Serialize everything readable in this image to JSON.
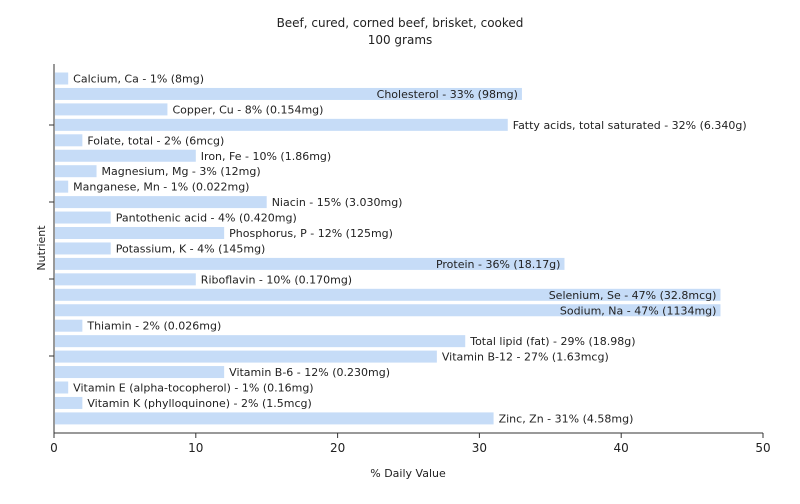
{
  "chart_data": {
    "type": "bar",
    "orientation": "horizontal",
    "title": "Beef, cured, corned beef, brisket, cooked",
    "subtitle": "100 grams",
    "xlabel": "% Daily Value",
    "ylabel": "Nutrient",
    "xlim": [
      0,
      50
    ],
    "xticks": [
      "0",
      "10",
      "20",
      "30",
      "40",
      "50"
    ],
    "grid": false,
    "legend": "none",
    "bar_color": "#c6dcf7",
    "bars": [
      {
        "category": "Calcium, Ca",
        "value": 1,
        "label": "Calcium, Ca - 1% (8mg)"
      },
      {
        "category": "Cholesterol",
        "value": 33,
        "label": "Cholesterol - 33% (98mg)"
      },
      {
        "category": "Copper, Cu",
        "value": 8,
        "label": "Copper, Cu - 8% (0.154mg)"
      },
      {
        "category": "Fatty acids, total saturated",
        "value": 32,
        "label": "Fatty acids, total saturated - 32% (6.340g)"
      },
      {
        "category": "Folate, total",
        "value": 2,
        "label": "Folate, total - 2% (6mcg)"
      },
      {
        "category": "Iron, Fe",
        "value": 10,
        "label": "Iron, Fe - 10% (1.86mg)"
      },
      {
        "category": "Magnesium, Mg",
        "value": 3,
        "label": "Magnesium, Mg - 3% (12mg)"
      },
      {
        "category": "Manganese, Mn",
        "value": 1,
        "label": "Manganese, Mn - 1% (0.022mg)"
      },
      {
        "category": "Niacin",
        "value": 15,
        "label": "Niacin - 15% (3.030mg)"
      },
      {
        "category": "Pantothenic acid",
        "value": 4,
        "label": "Pantothenic acid - 4% (0.420mg)"
      },
      {
        "category": "Phosphorus, P",
        "value": 12,
        "label": "Phosphorus, P - 12% (125mg)"
      },
      {
        "category": "Potassium, K",
        "value": 4,
        "label": "Potassium, K - 4% (145mg)"
      },
      {
        "category": "Protein",
        "value": 36,
        "label": "Protein - 36% (18.17g)"
      },
      {
        "category": "Riboflavin",
        "value": 10,
        "label": "Riboflavin - 10% (0.170mg)"
      },
      {
        "category": "Selenium, Se",
        "value": 47,
        "label": "Selenium, Se - 47% (32.8mcg)"
      },
      {
        "category": "Sodium, Na",
        "value": 47,
        "label": "Sodium, Na - 47% (1134mg)"
      },
      {
        "category": "Thiamin",
        "value": 2,
        "label": "Thiamin - 2% (0.026mg)"
      },
      {
        "category": "Total lipid (fat)",
        "value": 29,
        "label": "Total lipid (fat) - 29% (18.98g)"
      },
      {
        "category": "Vitamin B-12",
        "value": 27,
        "label": "Vitamin B-12 - 27% (1.63mcg)"
      },
      {
        "category": "Vitamin B-6",
        "value": 12,
        "label": "Vitamin B-6 - 12% (0.230mg)"
      },
      {
        "category": "Vitamin E (alpha-tocopherol)",
        "value": 1,
        "label": "Vitamin E (alpha-tocopherol) - 1% (0.16mg)"
      },
      {
        "category": "Vitamin K (phylloquinone)",
        "value": 2,
        "label": "Vitamin K (phylloquinone) - 2% (1.5mcg)"
      },
      {
        "category": "Zinc, Zn",
        "value": 31,
        "label": "Zinc, Zn - 31% (4.58mg)"
      }
    ]
  }
}
